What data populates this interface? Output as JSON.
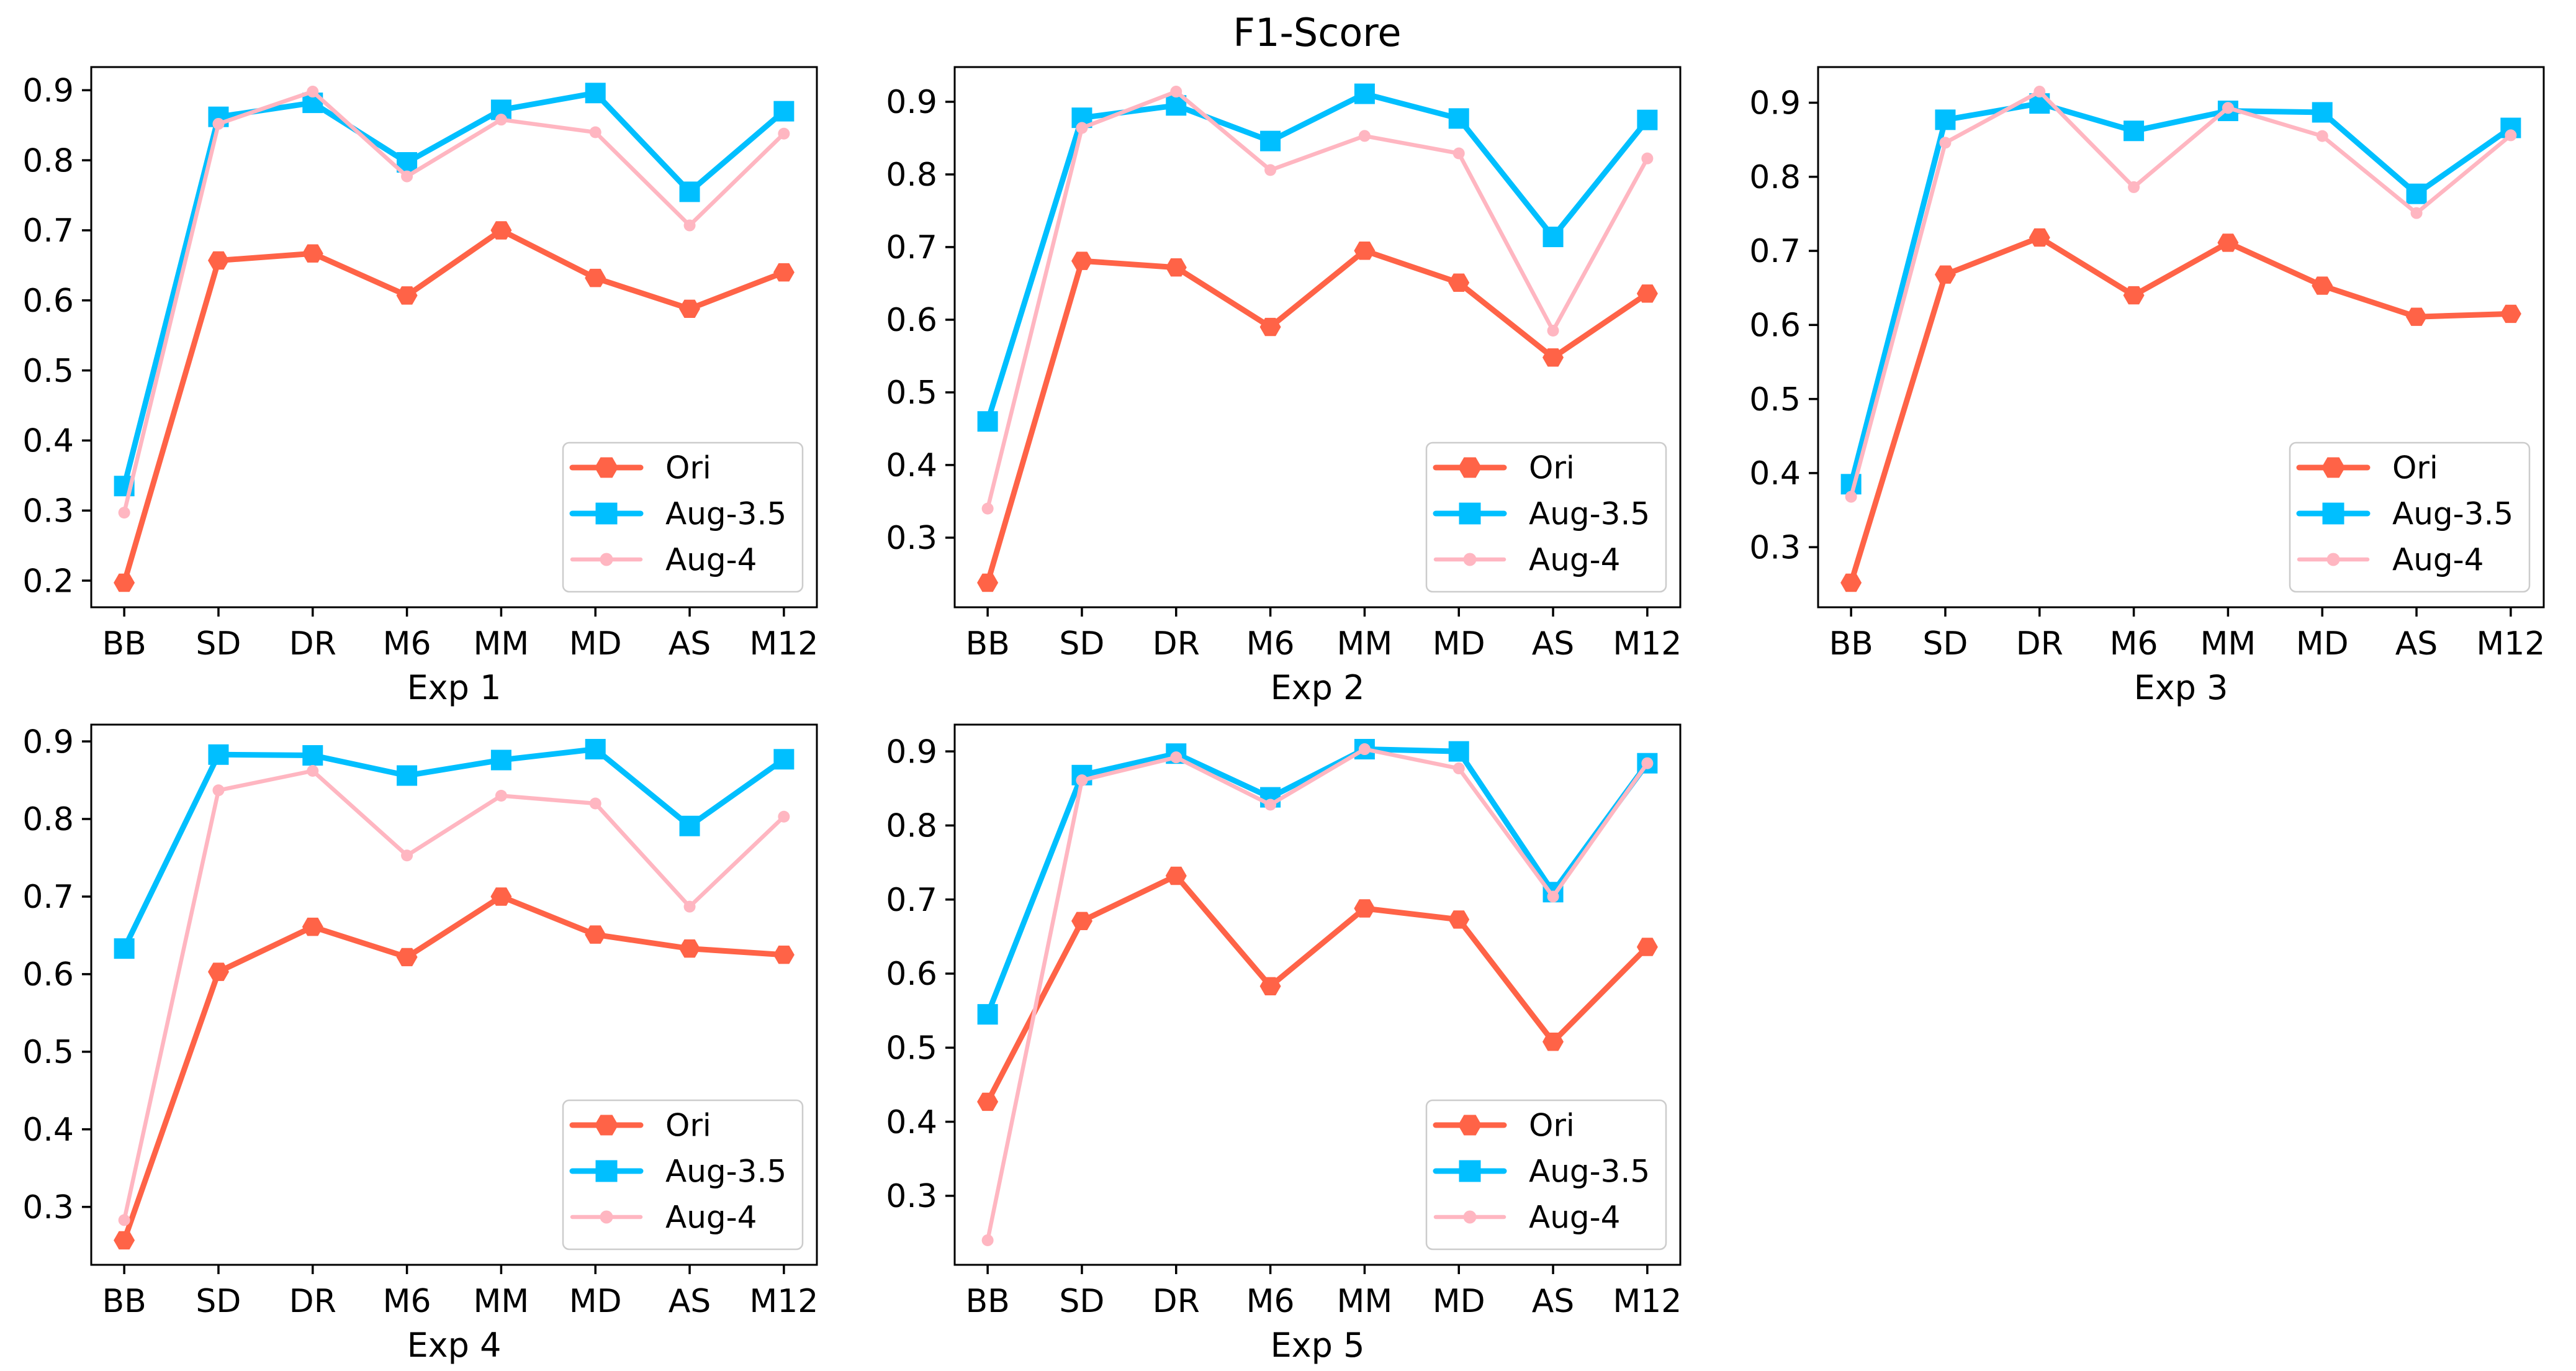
{
  "figure": {
    "title": "F1-Score",
    "background": "#ffffff"
  },
  "colors": {
    "ori": "#ff6347",
    "aug35": "#00bfff",
    "aug4": "#ffb6c1",
    "text": "#000000",
    "spine": "#000000",
    "legend_border": "#cccccc",
    "legend_bg": "#ffffff"
  },
  "legend": {
    "position": "lower right",
    "entries": [
      "Ori",
      "Aug-3.5",
      "Aug-4"
    ]
  },
  "chart_data": [
    {
      "type": "line",
      "xlabel": "Exp 1",
      "categories": [
        "BB",
        "SD",
        "DR",
        "M6",
        "MM",
        "MD",
        "AS",
        "M12"
      ],
      "yticks": [
        0.2,
        0.3,
        0.4,
        0.5,
        0.6,
        0.7,
        0.8,
        0.9
      ],
      "grid": false,
      "legend_position": "lower right",
      "series": [
        {
          "name": "Ori",
          "color": "#ff6347",
          "marker": "hexagon",
          "values": [
            0.197,
            0.657,
            0.667,
            0.607,
            0.7,
            0.632,
            0.588,
            0.64
          ]
        },
        {
          "name": "Aug-3.5",
          "color": "#00bfff",
          "marker": "square",
          "values": [
            0.335,
            0.862,
            0.882,
            0.797,
            0.872,
            0.896,
            0.755,
            0.87
          ]
        },
        {
          "name": "Aug-4",
          "color": "#ffb6c1",
          "marker": "circle",
          "values": [
            0.297,
            0.852,
            0.898,
            0.777,
            0.858,
            0.84,
            0.707,
            0.838
          ]
        }
      ]
    },
    {
      "type": "line",
      "xlabel": "Exp 2",
      "categories": [
        "BB",
        "SD",
        "DR",
        "M6",
        "MM",
        "MD",
        "AS",
        "M12"
      ],
      "yticks": [
        0.3,
        0.4,
        0.5,
        0.6,
        0.7,
        0.8,
        0.9
      ],
      "grid": false,
      "legend_position": "lower right",
      "series": [
        {
          "name": "Ori",
          "color": "#ff6347",
          "marker": "hexagon",
          "values": [
            0.238,
            0.681,
            0.672,
            0.59,
            0.695,
            0.651,
            0.548,
            0.636
          ]
        },
        {
          "name": "Aug-3.5",
          "color": "#00bfff",
          "marker": "square",
          "values": [
            0.46,
            0.878,
            0.895,
            0.846,
            0.911,
            0.877,
            0.714,
            0.875
          ]
        },
        {
          "name": "Aug-4",
          "color": "#ffb6c1",
          "marker": "circle",
          "values": [
            0.34,
            0.864,
            0.914,
            0.806,
            0.853,
            0.829,
            0.585,
            0.822
          ]
        }
      ]
    },
    {
      "type": "line",
      "xlabel": "Exp 3",
      "categories": [
        "BB",
        "SD",
        "DR",
        "M6",
        "MM",
        "MD",
        "AS",
        "M12"
      ],
      "yticks": [
        0.3,
        0.4,
        0.5,
        0.6,
        0.7,
        0.8,
        0.9
      ],
      "grid": false,
      "legend_position": "lower right",
      "series": [
        {
          "name": "Ori",
          "color": "#ff6347",
          "marker": "hexagon",
          "values": [
            0.252,
            0.668,
            0.718,
            0.64,
            0.711,
            0.653,
            0.611,
            0.615
          ]
        },
        {
          "name": "Aug-3.5",
          "color": "#00bfff",
          "marker": "square",
          "values": [
            0.385,
            0.877,
            0.899,
            0.862,
            0.889,
            0.887,
            0.777,
            0.866
          ]
        },
        {
          "name": "Aug-4",
          "color": "#ffb6c1",
          "marker": "circle",
          "values": [
            0.368,
            0.846,
            0.915,
            0.786,
            0.893,
            0.855,
            0.751,
            0.856
          ]
        }
      ]
    },
    {
      "type": "line",
      "xlabel": "Exp 4",
      "categories": [
        "BB",
        "SD",
        "DR",
        "M6",
        "MM",
        "MD",
        "AS",
        "M12"
      ],
      "yticks": [
        0.3,
        0.4,
        0.5,
        0.6,
        0.7,
        0.8,
        0.9
      ],
      "grid": false,
      "legend_position": "lower right",
      "series": [
        {
          "name": "Ori",
          "color": "#ff6347",
          "marker": "hexagon",
          "values": [
            0.257,
            0.603,
            0.661,
            0.622,
            0.7,
            0.651,
            0.633,
            0.625
          ]
        },
        {
          "name": "Aug-3.5",
          "color": "#00bfff",
          "marker": "square",
          "values": [
            0.633,
            0.883,
            0.882,
            0.856,
            0.876,
            0.89,
            0.791,
            0.877
          ]
        },
        {
          "name": "Aug-4",
          "color": "#ffb6c1",
          "marker": "circle",
          "values": [
            0.283,
            0.837,
            0.862,
            0.753,
            0.83,
            0.82,
            0.687,
            0.803
          ]
        }
      ]
    },
    {
      "type": "line",
      "xlabel": "Exp 5",
      "categories": [
        "BB",
        "SD",
        "DR",
        "M6",
        "MM",
        "MD",
        "AS",
        "M12"
      ],
      "yticks": [
        0.3,
        0.4,
        0.5,
        0.6,
        0.7,
        0.8,
        0.9
      ],
      "grid": false,
      "legend_position": "lower right",
      "series": [
        {
          "name": "Ori",
          "color": "#ff6347",
          "marker": "hexagon",
          "values": [
            0.427,
            0.671,
            0.732,
            0.583,
            0.688,
            0.673,
            0.508,
            0.636
          ]
        },
        {
          "name": "Aug-3.5",
          "color": "#00bfff",
          "marker": "square",
          "values": [
            0.545,
            0.868,
            0.897,
            0.838,
            0.903,
            0.9,
            0.71,
            0.884
          ]
        },
        {
          "name": "Aug-4",
          "color": "#ffb6c1",
          "marker": "circle",
          "values": [
            0.24,
            0.861,
            0.892,
            0.828,
            0.903,
            0.877,
            0.704,
            0.884
          ]
        }
      ]
    }
  ]
}
